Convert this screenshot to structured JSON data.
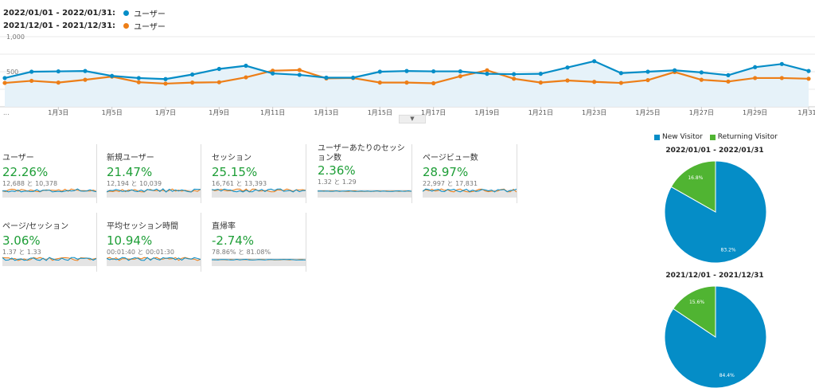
{
  "legend": {
    "current": {
      "range": "2022/01/01 - 2022/01/31:",
      "series": "ユーザー",
      "color": "#058dc7"
    },
    "previous": {
      "range": "2021/12/01 - 2021/12/31:",
      "series": "ユーザー",
      "color": "#ed7e17"
    }
  },
  "chart_data": [
    {
      "type": "line",
      "x": [
        "1月1日",
        "1月2日",
        "1月3日",
        "1月4日",
        "1月5日",
        "1月6日",
        "1月7日",
        "1月8日",
        "1月9日",
        "1月10日",
        "1月11日",
        "1月12日",
        "1月13日",
        "1月14日",
        "1月15日",
        "1月16日",
        "1月17日",
        "1月18日",
        "1月19日",
        "1月20日",
        "1月21日",
        "1月22日",
        "1月23日",
        "1月24日",
        "1月25日",
        "1月26日",
        "1月27日",
        "1月28日",
        "1月29日",
        "1月30日",
        "1月31日"
      ],
      "series": [
        {
          "name": "ユーザー (2022/01/01 - 2022/01/31)",
          "color": "#058dc7",
          "values": [
            410,
            500,
            505,
            510,
            440,
            410,
            395,
            460,
            540,
            585,
            475,
            455,
            415,
            415,
            500,
            510,
            505,
            505,
            470,
            465,
            470,
            560,
            650,
            480,
            500,
            520,
            490,
            450,
            565,
            610,
            510
          ]
        },
        {
          "name": "ユーザー (2021/12/01 - 2021/12/31)",
          "color": "#ed7e17",
          "values": [
            340,
            370,
            345,
            385,
            430,
            350,
            330,
            345,
            350,
            420,
            515,
            525,
            405,
            410,
            345,
            345,
            335,
            435,
            520,
            400,
            345,
            375,
            355,
            340,
            380,
            495,
            385,
            360,
            410,
            410,
            400
          ]
        }
      ],
      "yticks": [
        "500",
        "1,000"
      ],
      "xticks": [
        "1月3日",
        "1月5日",
        "1月7日",
        "1月9日",
        "1月11日",
        "1月13日",
        "1月15日",
        "1月17日",
        "1月19日",
        "1月21日",
        "1月23日",
        "1月25日",
        "1月27日",
        "1月29日",
        "1月31"
      ],
      "ylim": [
        0,
        1000
      ],
      "grid": true
    },
    {
      "type": "pie",
      "title": "2022/01/01 - 2022/01/31",
      "categories": [
        "New Visitor",
        "Returning Visitor"
      ],
      "values": [
        83.2,
        16.8
      ],
      "labels": [
        "83.2%",
        "16.8%"
      ],
      "colors": [
        "#058dc7",
        "#50b432"
      ]
    },
    {
      "type": "pie",
      "title": "2021/12/01 - 2021/12/31",
      "categories": [
        "New Visitor",
        "Returning Visitor"
      ],
      "values": [
        84.4,
        15.6
      ],
      "labels": [
        "84.4%",
        "15.6%"
      ],
      "colors": [
        "#058dc7",
        "#50b432"
      ]
    }
  ],
  "xaxis_start_label": "...",
  "collapse_glyph": "▼",
  "pie_legend": [
    {
      "label": "New Visitor",
      "color": "#058dc7"
    },
    {
      "label": "Returning Visitor",
      "color": "#50b432"
    }
  ],
  "metrics": [
    {
      "name": "ユーザー",
      "pct": "22.26%",
      "compare": "12,688 と 10,378"
    },
    {
      "name": "新規ユーザー",
      "pct": "21.47%",
      "compare": "12,194 と 10,039"
    },
    {
      "name": "セッション",
      "pct": "25.15%",
      "compare": "16,761 と 13,393"
    },
    {
      "name": "ユーザーあたりのセッション数",
      "pct": "2.36%",
      "compare": "1.32 と 1.29"
    },
    {
      "name": "ページビュー数",
      "pct": "28.97%",
      "compare": "22,997 と 17,831"
    },
    {
      "name": "ページ/セッション",
      "pct": "3.06%",
      "compare": "1.37 と 1.33"
    },
    {
      "name": "平均セッション時間",
      "pct": "10.94%",
      "compare": "00:01:40 と 00:01:30"
    },
    {
      "name": "直帰率",
      "pct": "-2.74%",
      "compare": "78.86% と 81.08%"
    }
  ]
}
